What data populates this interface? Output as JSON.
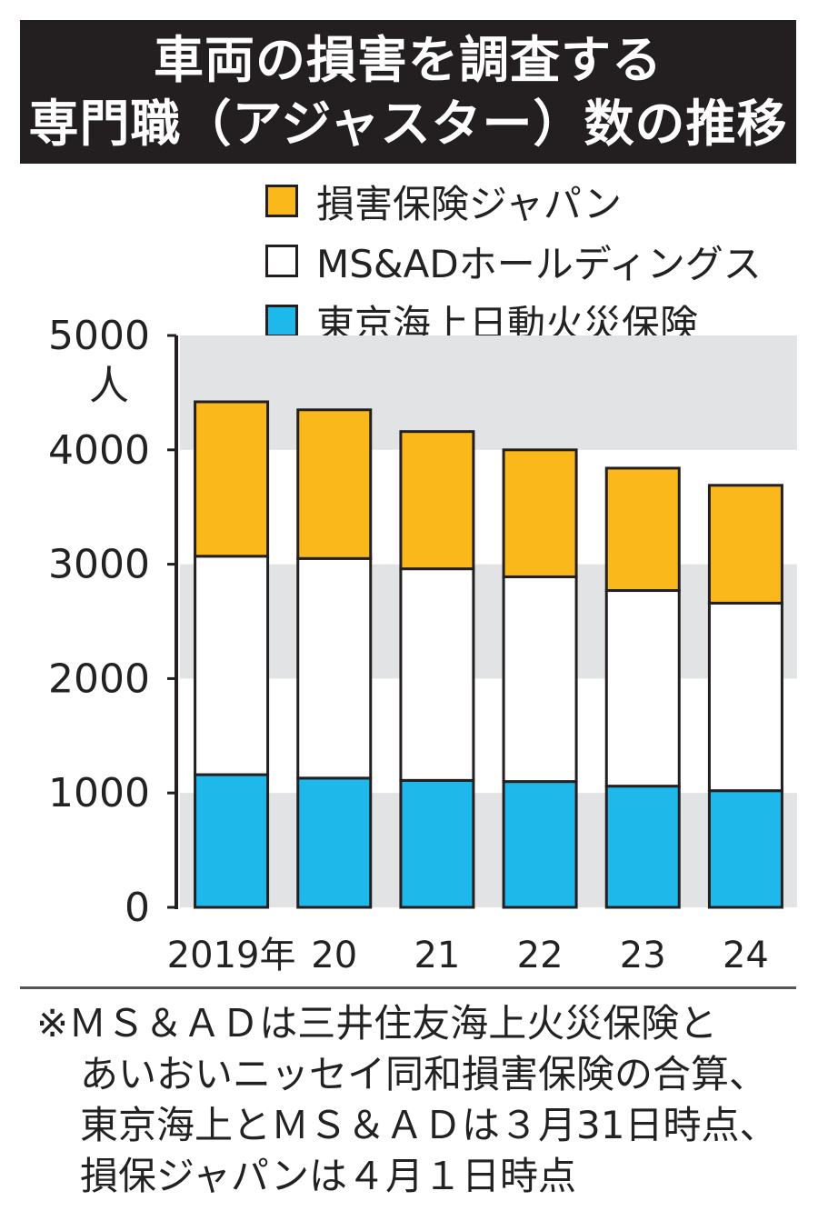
{
  "title": {
    "line1": "車両の損害を調査する",
    "line2": "専門職（アジャスター）数の推移"
  },
  "legend": [
    {
      "label": "損害保険ジャパン",
      "color": "#fbb81b"
    },
    {
      "label": "MS&ADホールディングス",
      "color": "#ffffff"
    },
    {
      "label": "東京海上日動火災保険",
      "color": "#1eb8ea"
    }
  ],
  "chart_data": {
    "type": "bar",
    "stacked": true,
    "categories": [
      "2019年",
      "20",
      "21",
      "22",
      "23",
      "24"
    ],
    "series": [
      {
        "name": "東京海上日動火災保険",
        "color": "#1eb8ea",
        "values": [
          1160,
          1130,
          1110,
          1100,
          1060,
          1020
        ]
      },
      {
        "name": "MS&ADホールディングス",
        "color": "#ffffff",
        "values": [
          1910,
          1920,
          1850,
          1790,
          1710,
          1640
        ]
      },
      {
        "name": "損害保険ジャパン",
        "color": "#fbb81b",
        "values": [
          1350,
          1300,
          1200,
          1110,
          1070,
          1030
        ]
      }
    ],
    "yticks": [
      "0",
      "1000",
      "2000",
      "3000",
      "4000",
      "5000"
    ],
    "yunit": "人",
    "ylim": [
      0,
      5000
    ],
    "banded_grid": true
  },
  "note": {
    "line1": "※ＭＳ＆ＡＤは三井住友海上火災保険と",
    "line2": "あいおいニッセイ同和損害保険の合算、",
    "line3": "東京海上とＭＳ＆ＡＤは３月31日時点、",
    "line4": "損保ジャパンは４月１日時点"
  }
}
